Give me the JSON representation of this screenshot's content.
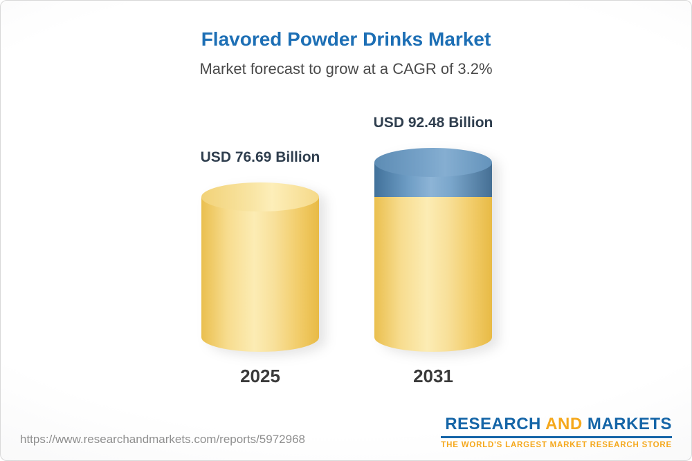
{
  "chart_data": {
    "type": "bar",
    "title": "Flavored Powder Drinks Market",
    "subtitle": "Market forecast to grow at a CAGR of 3.2%",
    "cagr": "3.2%",
    "categories": [
      "2025",
      "2031"
    ],
    "values": [
      76.69,
      92.48
    ],
    "value_labels": [
      "USD 76.69 Billion",
      "USD 92.48 Billion"
    ],
    "unit": "USD Billion",
    "ylim": [
      0,
      92.48
    ],
    "grid": false,
    "legend": false,
    "colors": {
      "title_blue": "#1d6fb5",
      "bar_yellow": "#f6d06f",
      "growth_segment_blue": "#6d9cc4",
      "logo_blue": "#1565a7",
      "logo_gold": "#f5a81c"
    }
  },
  "footer": {
    "url": "https://www.researchandmarkets.com/reports/5972968",
    "logo": {
      "research": "RESEARCH",
      "and": "AND",
      "markets": "MARKETS",
      "tagline": "THE WORLD'S LARGEST MARKET RESEARCH STORE"
    }
  }
}
